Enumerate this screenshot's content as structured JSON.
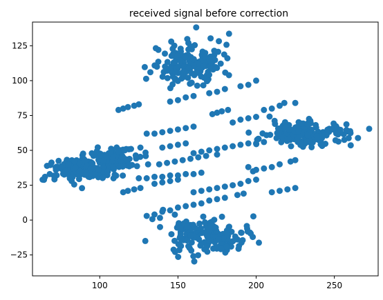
{
  "chart_data": {
    "type": "scatter",
    "title": "received signal before correction",
    "xlabel": "",
    "ylabel": "",
    "xlim": [
      57,
      278
    ],
    "ylim": [
      -40,
      142
    ],
    "x_ticks": [
      100,
      150,
      200,
      250
    ],
    "y_ticks": [
      -25,
      0,
      25,
      50,
      75,
      100,
      125
    ],
    "grid": false,
    "marker_color": "#1f77b4",
    "clusters": [
      {
        "cx": 160,
        "cy": 112,
        "sx": 12,
        "sy": 7,
        "n": 170
      },
      {
        "cx": 170,
        "cy": -12,
        "sx": 13,
        "sy": 7,
        "n": 170
      },
      {
        "cx": 88,
        "cy": 36,
        "sx": 10,
        "sy": 4,
        "n": 140
      },
      {
        "cx": 110,
        "cy": 44,
        "sx": 9,
        "sy": 4,
        "n": 110
      },
      {
        "cx": 232,
        "cy": 62,
        "sx": 14,
        "sy": 4,
        "n": 180
      }
    ],
    "points": [
      [
        65,
        31
      ],
      [
        68,
        33
      ],
      [
        72,
        36
      ],
      [
        75,
        38
      ],
      [
        78,
        35
      ],
      [
        80,
        40
      ],
      [
        82,
        28
      ],
      [
        84,
        42
      ],
      [
        112,
        79
      ],
      [
        115,
        80
      ],
      [
        118,
        81
      ],
      [
        122,
        82
      ],
      [
        125,
        83
      ],
      [
        130,
        62
      ],
      [
        135,
        62
      ],
      [
        140,
        63
      ],
      [
        145,
        64
      ],
      [
        150,
        65
      ],
      [
        155,
        66
      ],
      [
        160,
        67
      ],
      [
        145,
        85
      ],
      [
        150,
        86
      ],
      [
        155,
        88
      ],
      [
        160,
        89
      ],
      [
        170,
        91
      ],
      [
        175,
        92
      ],
      [
        180,
        94
      ],
      [
        190,
        96
      ],
      [
        195,
        97
      ],
      [
        200,
        100
      ],
      [
        172,
        76
      ],
      [
        175,
        77
      ],
      [
        178,
        78
      ],
      [
        182,
        79
      ],
      [
        205,
        79
      ],
      [
        210,
        80
      ],
      [
        215,
        82
      ],
      [
        218,
        84
      ],
      [
        225,
        84
      ],
      [
        160,
        48
      ],
      [
        165,
        49
      ],
      [
        170,
        50
      ],
      [
        175,
        51
      ],
      [
        180,
        52
      ],
      [
        185,
        53
      ],
      [
        190,
        54
      ],
      [
        195,
        55
      ],
      [
        140,
        52
      ],
      [
        145,
        53
      ],
      [
        150,
        54
      ],
      [
        155,
        55
      ],
      [
        185,
        70
      ],
      [
        190,
        72
      ],
      [
        195,
        73
      ],
      [
        200,
        74
      ],
      [
        125,
        30
      ],
      [
        130,
        30
      ],
      [
        135,
        31
      ],
      [
        140,
        31
      ],
      [
        145,
        32
      ],
      [
        150,
        32
      ],
      [
        155,
        33
      ],
      [
        160,
        33
      ],
      [
        165,
        34
      ],
      [
        138,
        40
      ],
      [
        143,
        41
      ],
      [
        148,
        42
      ],
      [
        153,
        43
      ],
      [
        158,
        44
      ],
      [
        163,
        45
      ],
      [
        168,
        46
      ],
      [
        175,
        47
      ],
      [
        195,
        38
      ],
      [
        198,
        35
      ],
      [
        200,
        36
      ],
      [
        205,
        37
      ],
      [
        210,
        38
      ],
      [
        215,
        40
      ],
      [
        222,
        42
      ],
      [
        225,
        43
      ],
      [
        115,
        20
      ],
      [
        118,
        21
      ],
      [
        122,
        22
      ],
      [
        126,
        23
      ],
      [
        135,
        26
      ],
      [
        140,
        27
      ],
      [
        145,
        28
      ],
      [
        150,
        29
      ],
      [
        160,
        20
      ],
      [
        165,
        21
      ],
      [
        170,
        22
      ],
      [
        175,
        23
      ],
      [
        180,
        24
      ],
      [
        185,
        25
      ],
      [
        190,
        26
      ],
      [
        195,
        28
      ],
      [
        200,
        29
      ],
      [
        210,
        20
      ],
      [
        215,
        21
      ],
      [
        220,
        22
      ],
      [
        225,
        23
      ],
      [
        130,
        3
      ],
      [
        135,
        4
      ],
      [
        140,
        6
      ],
      [
        145,
        7
      ],
      [
        150,
        9
      ],
      [
        155,
        10
      ],
      [
        160,
        11
      ],
      [
        165,
        12
      ],
      [
        170,
        14
      ],
      [
        175,
        15
      ],
      [
        180,
        16
      ],
      [
        188,
        18
      ],
      [
        192,
        19
      ],
      [
        112,
        49
      ],
      [
        116,
        50
      ],
      [
        120,
        51
      ],
      [
        126,
        52
      ],
      [
        200,
        55
      ],
      [
        205,
        56
      ]
    ]
  }
}
